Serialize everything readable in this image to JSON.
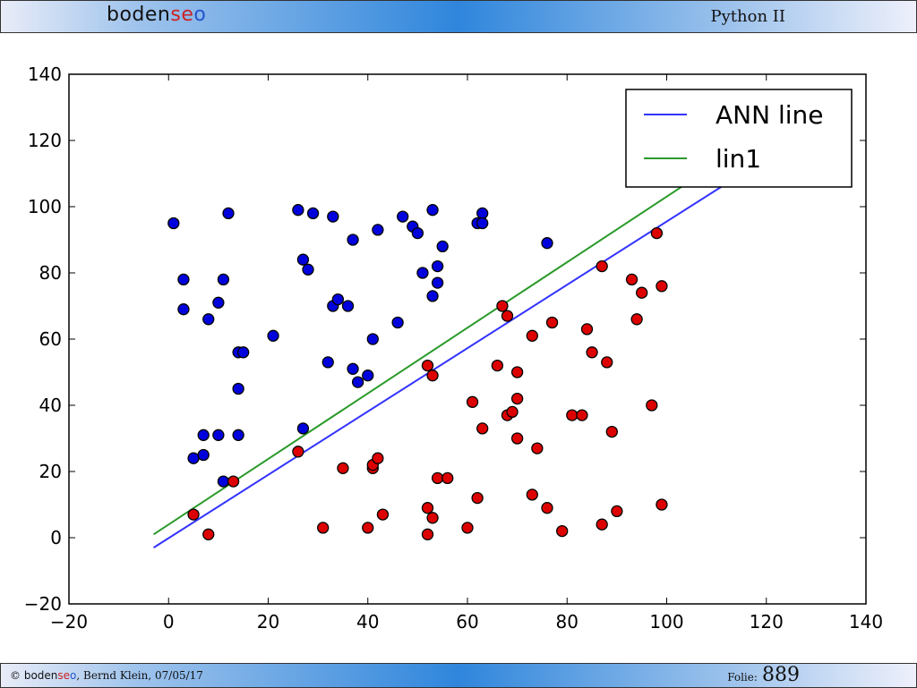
{
  "header": {
    "logo_part1": "boden",
    "logo_part2": "se",
    "logo_part3": "o",
    "course_title": "Python II"
  },
  "footer": {
    "copyright": "©",
    "logo_part1": "boden",
    "logo_part2": "se",
    "logo_part3": "o",
    "author_date": ", Bernd Klein, 07/05/17",
    "folio_label": "Folie:",
    "folio_number": "889"
  },
  "colors": {
    "logo_dark": "#111111",
    "logo_red": "#cc2222",
    "logo_blue": "#2255cc",
    "class0_points": "#0000dd",
    "class1_points": "#dd0000",
    "ann_line": "#3333ff",
    "lin1_line": "#2a9a2a"
  },
  "chart_data": {
    "type": "scatter",
    "xlim": [
      -20,
      140
    ],
    "ylim": [
      -20,
      140
    ],
    "xticks": [
      -20,
      0,
      20,
      40,
      60,
      80,
      100,
      120,
      140
    ],
    "yticks": [
      -20,
      0,
      20,
      40,
      60,
      80,
      100,
      120,
      140
    ],
    "grid": false,
    "legend_position": "top-right",
    "lines": [
      {
        "name": "ANN line",
        "color": "#3333ff",
        "x": [
          -3,
          112
        ],
        "y": [
          -3,
          107
        ]
      },
      {
        "name": "lin1",
        "color": "#2a9a2a",
        "x": [
          -3,
          104
        ],
        "y": [
          1,
          107
        ]
      }
    ],
    "series": [
      {
        "color": "#0000dd",
        "points": [
          [
            1,
            95
          ],
          [
            3,
            78
          ],
          [
            3,
            69
          ],
          [
            5,
            24
          ],
          [
            7,
            31
          ],
          [
            7,
            25
          ],
          [
            8,
            66
          ],
          [
            10,
            71
          ],
          [
            10,
            31
          ],
          [
            11,
            78
          ],
          [
            11,
            17
          ],
          [
            12,
            98
          ],
          [
            14,
            56
          ],
          [
            15,
            56
          ],
          [
            14,
            45
          ],
          [
            14,
            31
          ],
          [
            21,
            61
          ],
          [
            26,
            99
          ],
          [
            27,
            84
          ],
          [
            27,
            33
          ],
          [
            28,
            81
          ],
          [
            29,
            98
          ],
          [
            32,
            53
          ],
          [
            33,
            70
          ],
          [
            33,
            97
          ],
          [
            34,
            72
          ],
          [
            36,
            70
          ],
          [
            37,
            90
          ],
          [
            37,
            51
          ],
          [
            38,
            47
          ],
          [
            40,
            49
          ],
          [
            41,
            60
          ],
          [
            42,
            93
          ],
          [
            46,
            65
          ],
          [
            47,
            97
          ],
          [
            49,
            94
          ],
          [
            50,
            92
          ],
          [
            51,
            80
          ],
          [
            53,
            99
          ],
          [
            53,
            73
          ],
          [
            54,
            82
          ],
          [
            54,
            77
          ],
          [
            55,
            88
          ],
          [
            62,
            95
          ],
          [
            63,
            98
          ],
          [
            63,
            95
          ],
          [
            76,
            89
          ]
        ]
      },
      {
        "color": "#dd0000",
        "points": [
          [
            5,
            7
          ],
          [
            8,
            1
          ],
          [
            13,
            17
          ],
          [
            26,
            26
          ],
          [
            31,
            3
          ],
          [
            35,
            21
          ],
          [
            40,
            3
          ],
          [
            41,
            21
          ],
          [
            41,
            22
          ],
          [
            42,
            24
          ],
          [
            43,
            7
          ],
          [
            52,
            52
          ],
          [
            52,
            9
          ],
          [
            52,
            1
          ],
          [
            53,
            49
          ],
          [
            53,
            6
          ],
          [
            54,
            18
          ],
          [
            56,
            18
          ],
          [
            60,
            3
          ],
          [
            61,
            41
          ],
          [
            62,
            12
          ],
          [
            63,
            33
          ],
          [
            66,
            52
          ],
          [
            67,
            70
          ],
          [
            68,
            67
          ],
          [
            68,
            37
          ],
          [
            69,
            38
          ],
          [
            70,
            50
          ],
          [
            70,
            42
          ],
          [
            70,
            30
          ],
          [
            73,
            61
          ],
          [
            73,
            13
          ],
          [
            74,
            27
          ],
          [
            76,
            9
          ],
          [
            77,
            65
          ],
          [
            79,
            2
          ],
          [
            81,
            37
          ],
          [
            83,
            37
          ],
          [
            84,
            63
          ],
          [
            85,
            56
          ],
          [
            87,
            82
          ],
          [
            87,
            4
          ],
          [
            88,
            53
          ],
          [
            89,
            32
          ],
          [
            90,
            8
          ],
          [
            93,
            78
          ],
          [
            94,
            66
          ],
          [
            95,
            74
          ],
          [
            97,
            40
          ],
          [
            98,
            92
          ],
          [
            99,
            76
          ],
          [
            99,
            10
          ]
        ]
      }
    ]
  }
}
